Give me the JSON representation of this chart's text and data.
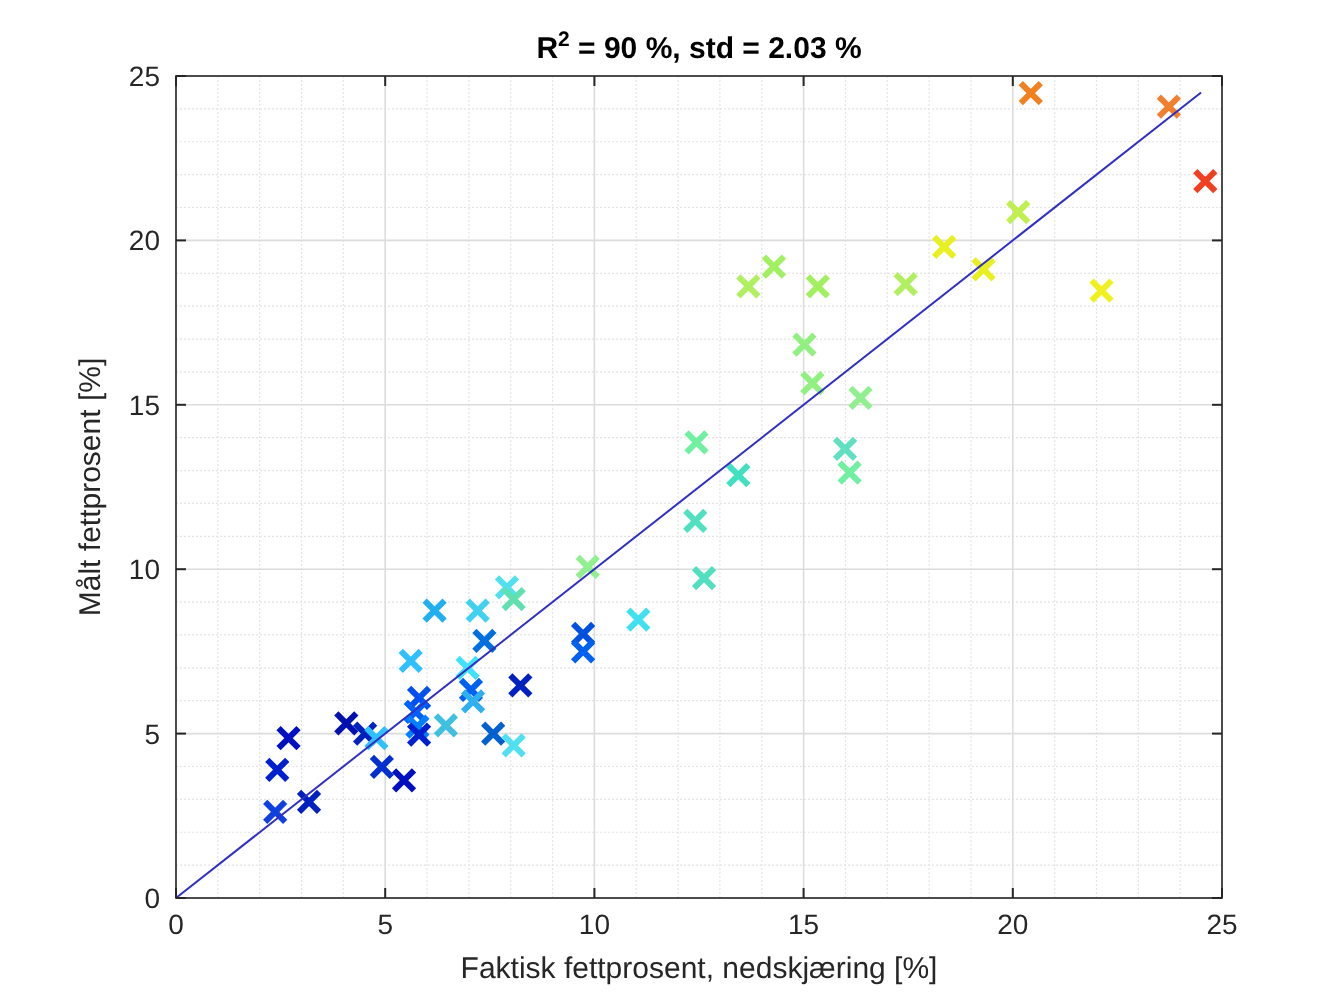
{
  "chart_data": {
    "type": "scatter",
    "title": "R$^{2}$ = 90 %, std = 2.03 %",
    "xlabel": "Faktisk fettprosent, nedskjæring [%]",
    "ylabel": "Målt fettprosent [%]",
    "xlim": [
      0,
      25
    ],
    "ylim": [
      0,
      25
    ],
    "xticks": [
      0,
      5,
      10,
      15,
      20,
      25
    ],
    "yticks": [
      0,
      5,
      10,
      15,
      20,
      25
    ],
    "grid": true,
    "legend": false,
    "series": [
      {
        "marker": "cross",
        "x": [
          2.37,
          2.42,
          2.69,
          3.18,
          4.07,
          4.52,
          4.79,
          4.92,
          5.45,
          5.61,
          5.81,
          5.73,
          5.77,
          5.81,
          6.18,
          6.45,
          6.97,
          7.05,
          7.1,
          7.21,
          7.37,
          7.58,
          7.91,
          8.07,
          8.07,
          8.23,
          9.73,
          9.73,
          9.84,
          11.05,
          12.41,
          12.44,
          12.62,
          13.44,
          13.68,
          14.29,
          15.02,
          15.21,
          15.34,
          16.36,
          15.99,
          16.1,
          17.44,
          18.36,
          19.3,
          20.13,
          20.43,
          22.12,
          23.73,
          24.6
        ],
        "values": [
          2.62,
          3.9,
          4.86,
          2.92,
          5.31,
          5.0,
          4.86,
          3.99,
          3.58,
          7.21,
          6.09,
          5.66,
          5.21,
          4.97,
          8.74,
          5.25,
          7.0,
          6.33,
          5.98,
          8.74,
          7.82,
          5.0,
          9.45,
          9.09,
          4.64,
          6.47,
          8.03,
          7.5,
          10.07,
          8.47,
          11.47,
          13.86,
          9.73,
          12.86,
          18.6,
          19.2,
          16.83,
          15.66,
          18.6,
          15.21,
          13.66,
          12.94,
          18.67,
          19.8,
          19.12,
          20.86,
          24.48,
          18.47,
          24.07,
          21.8
        ],
        "colors": [
          "#1040e0",
          "#0020d0",
          "#0010c0",
          "#0020c0",
          "#0010b0",
          "#0020c0",
          "#30c0ff",
          "#0030d0",
          "#0010c0",
          "#30c0ff",
          "#0050f0",
          "#0060ff",
          "#0080ff",
          "#0020d0",
          "#20b0f0",
          "#40c0e0",
          "#40e0ff",
          "#0060f0",
          "#30b0f0",
          "#40d0f0",
          "#0070e0",
          "#0060d0",
          "#50e0f0",
          "#60e0b0",
          "#50e0f0",
          "#0020c0",
          "#0050e0",
          "#0060f0",
          "#90f090",
          "#40e0f0",
          "#50e0c0",
          "#70f0a0",
          "#50e0c0",
          "#40e0c0",
          "#b0f060",
          "#a0f060",
          "#90f080",
          "#90f080",
          "#a0f060",
          "#90f090",
          "#60e0c0",
          "#70f0a0",
          "#b0f060",
          "#e8f020",
          "#e8f020",
          "#c0f050",
          "#f08020",
          "#f0f020",
          "#f08030",
          "#f04020"
        ]
      },
      {
        "type": "line",
        "marker": "none",
        "line_style": "solid",
        "color": "#3030c0",
        "x": [
          0,
          24.5
        ],
        "values": [
          0,
          24.5
        ]
      }
    ]
  }
}
